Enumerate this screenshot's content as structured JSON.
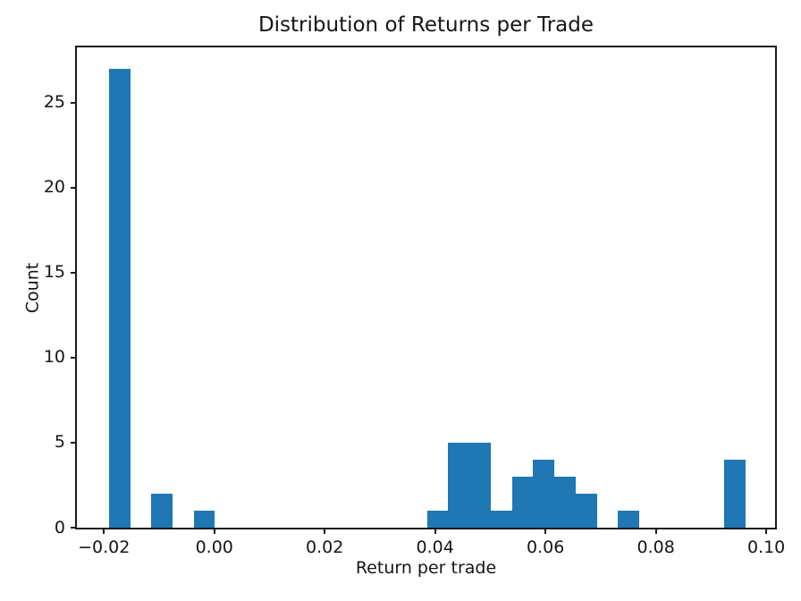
{
  "figure": {
    "background_color": "#ffffff",
    "text_color": "#151515",
    "spine_color": "#1b1b1b"
  },
  "chart_data": {
    "type": "bar",
    "variant": "histogram",
    "title": "Distribution of Returns per Trade",
    "xlabel": "Return per trade",
    "ylabel": "Count",
    "bar_color": "#1f77b4",
    "grid": false,
    "legend": null,
    "bins": 30,
    "bin_start": -0.0191,
    "bin_width": 0.003843,
    "counts": [
      27,
      0,
      2,
      0,
      1,
      0,
      0,
      0,
      0,
      0,
      0,
      0,
      0,
      0,
      0,
      1,
      5,
      5,
      1,
      3,
      4,
      3,
      2,
      0,
      1,
      0,
      0,
      0,
      0,
      4
    ],
    "xlim": [
      -0.0249,
      0.1016
    ],
    "ylim": [
      0,
      28.26
    ],
    "x_ticks": [
      {
        "value": -0.02,
        "label": "−0.02"
      },
      {
        "value": 0.0,
        "label": "0.00"
      },
      {
        "value": 0.02,
        "label": "0.02"
      },
      {
        "value": 0.04,
        "label": "0.04"
      },
      {
        "value": 0.06,
        "label": "0.06"
      },
      {
        "value": 0.08,
        "label": "0.08"
      },
      {
        "value": 0.1,
        "label": "0.10"
      }
    ],
    "y_ticks": [
      {
        "value": 0,
        "label": "0"
      },
      {
        "value": 5,
        "label": "5"
      },
      {
        "value": 10,
        "label": "10"
      },
      {
        "value": 15,
        "label": "15"
      },
      {
        "value": 20,
        "label": "20"
      },
      {
        "value": 25,
        "label": "25"
      }
    ]
  }
}
